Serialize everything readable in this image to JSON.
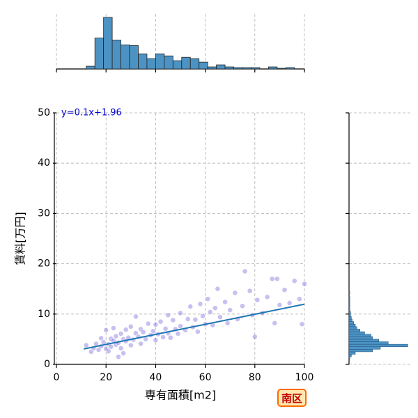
{
  "chart_data": {
    "type": "scatter",
    "xlabel": "専有面積[m2]",
    "ylabel": "賃料[万円]",
    "annotation": "y=0.1x+1.96",
    "badge": "南区",
    "xlim": [
      0,
      100
    ],
    "ylim": [
      0,
      50
    ],
    "xticks": [
      0,
      20,
      40,
      60,
      80,
      100
    ],
    "yticks": [
      0,
      10,
      20,
      30,
      40,
      50
    ],
    "grid": true,
    "point_color": "#4433cc",
    "line_color": "#1f77b4",
    "hist_color": "#4c93c4",
    "x": [
      12,
      14,
      15,
      16,
      17,
      18,
      18,
      19,
      20,
      20,
      21,
      21,
      22,
      22,
      23,
      23,
      24,
      24,
      25,
      25,
      26,
      26,
      27,
      27,
      28,
      28,
      29,
      30,
      30,
      31,
      32,
      32,
      33,
      34,
      34,
      35,
      36,
      37,
      38,
      39,
      40,
      40,
      41,
      42,
      43,
      44,
      45,
      45,
      46,
      47,
      48,
      49,
      50,
      50,
      52,
      53,
      54,
      55,
      56,
      57,
      58,
      59,
      60,
      61,
      62,
      63,
      64,
      65,
      66,
      68,
      69,
      70,
      72,
      73,
      75,
      76,
      78,
      79,
      80,
      81,
      83,
      85,
      87,
      88,
      89,
      90,
      92,
      94,
      96,
      99,
      100,
      98
    ],
    "y": [
      3.8,
      2.5,
      3.2,
      4.1,
      2.9,
      3.6,
      5.2,
      4.4,
      3.1,
      6.8,
      4.0,
      2.6,
      5.1,
      3.5,
      4.7,
      7.2,
      3.9,
      5.6,
      1.5,
      4.3,
      6.1,
      3.2,
      5.0,
      2.2,
      4.6,
      6.9,
      5.3,
      3.8,
      7.5,
      4.9,
      6.2,
      9.5,
      5.5,
      4.1,
      7.0,
      6.4,
      5.0,
      8.1,
      5.8,
      6.6,
      4.8,
      7.9,
      6.0,
      8.5,
      5.4,
      7.1,
      9.8,
      6.2,
      5.3,
      8.8,
      7.0,
      6.1,
      10.2,
      7.6,
      6.8,
      9.0,
      11.5,
      7.4,
      8.9,
      6.5,
      12.0,
      9.6,
      8.0,
      13.0,
      10.4,
      7.8,
      11.2,
      15.0,
      9.4,
      12.4,
      8.2,
      10.8,
      14.2,
      9.0,
      11.6,
      18.5,
      14.6,
      9.8,
      5.5,
      12.8,
      10.2,
      13.4,
      17.0,
      8.2,
      17.0,
      11.8,
      14.8,
      12.2,
      16.6,
      8.0,
      16.0,
      13.0
    ],
    "regression": {
      "x": [
        11,
        100
      ],
      "y": [
        3.06,
        11.96
      ]
    },
    "top_hist": {
      "ylim": [
        0,
        80
      ],
      "bins": [
        12,
        15.5,
        19,
        22.5,
        26,
        29.5,
        33,
        36.5,
        40,
        43.5,
        47,
        50.5,
        54,
        57.5,
        61,
        64.5,
        68,
        71.5,
        75,
        78.5,
        82,
        85.5,
        89,
        92.5,
        96
      ],
      "counts": [
        4,
        45,
        75,
        42,
        35,
        34,
        22,
        15,
        22,
        19,
        12,
        17,
        15,
        10,
        3,
        6,
        3,
        2,
        2,
        2,
        0,
        3,
        1,
        2
      ]
    },
    "right_hist": {
      "xlim": [
        0,
        80
      ],
      "bins": [
        1,
        1.5,
        2,
        2.5,
        3,
        3.5,
        4,
        4.5,
        5,
        5.5,
        6,
        6.5,
        7,
        7.5,
        8,
        8.5,
        9,
        9.5,
        10,
        10.5,
        11,
        11.5,
        12,
        12.5,
        13,
        13.5,
        14,
        14.5,
        15
      ],
      "counts": [
        1,
        3,
        8,
        30,
        40,
        75,
        50,
        38,
        30,
        28,
        20,
        14,
        10,
        8,
        6,
        4,
        3,
        2,
        2,
        1,
        1,
        1,
        1,
        1,
        1,
        0,
        1,
        0
      ]
    }
  }
}
